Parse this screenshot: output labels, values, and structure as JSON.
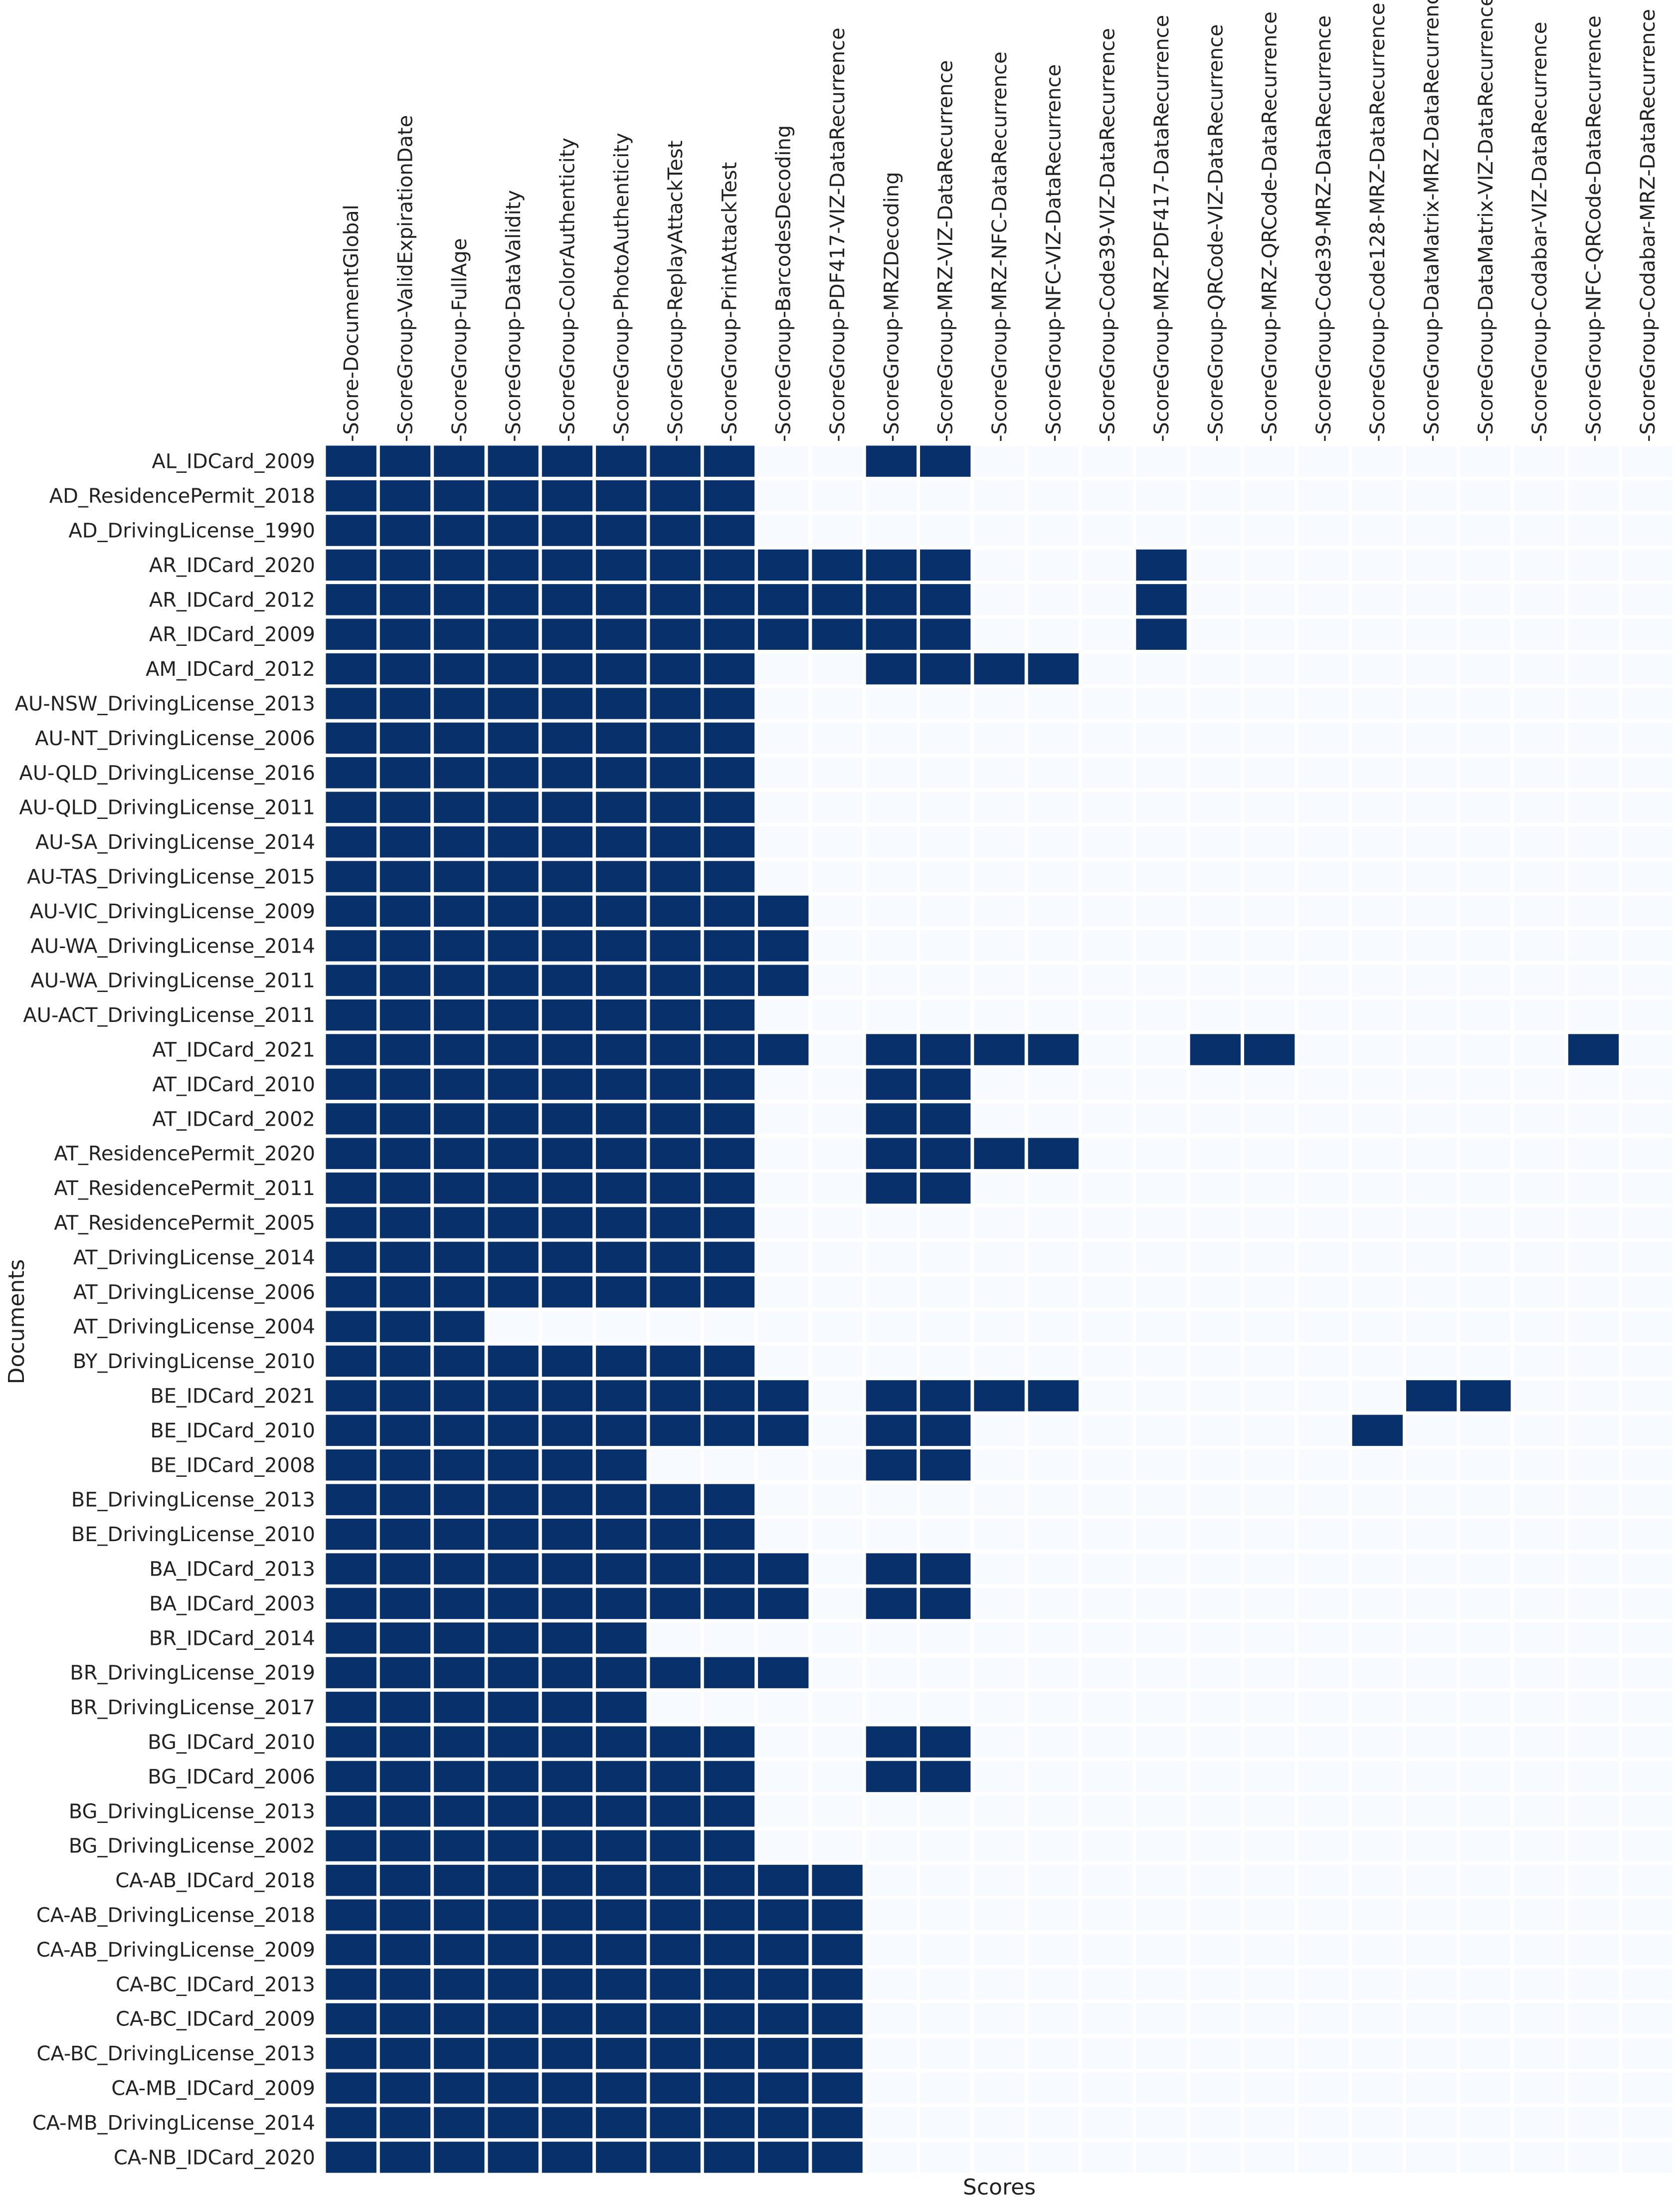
{
  "chart_data": {
    "type": "heatmap",
    "xlabel": "Scores",
    "ylabel": "Documents",
    "colors": {
      "filled": "#08306b",
      "empty": "#f7fbff",
      "gridline": "#ffffff",
      "text": "#222222"
    },
    "columns": [
      "-Score-DocumentGlobal",
      "-ScoreGroup-ValidExpirationDate",
      "-ScoreGroup-FullAge",
      "-ScoreGroup-DataValidity",
      "-ScoreGroup-ColorAuthenticity",
      "-ScoreGroup-PhotoAuthenticity",
      "-ScoreGroup-ReplayAttackTest",
      "-ScoreGroup-PrintAttackTest",
      "-ScoreGroup-BarcodesDecoding",
      "-ScoreGroup-PDF417-VIZ-DataRecurrence",
      "-ScoreGroup-MRZDecoding",
      "-ScoreGroup-MRZ-VIZ-DataRecurrence",
      "-ScoreGroup-MRZ-NFC-DataRecurrence",
      "-ScoreGroup-NFC-VIZ-DataRecurrence",
      "-ScoreGroup-Code39-VIZ-DataRecurrence",
      "-ScoreGroup-MRZ-PDF417-DataRecurrence",
      "-ScoreGroup-QRCode-VIZ-DataRecurrence",
      "-ScoreGroup-MRZ-QRCode-DataRecurrence",
      "-ScoreGroup-Code39-MRZ-DataRecurrence",
      "-ScoreGroup-Code128-MRZ-DataRecurrence",
      "-ScoreGroup-DataMatrix-MRZ-DataRecurrence",
      "-ScoreGroup-DataMatrix-VIZ-DataRecurrence",
      "-ScoreGroup-Codabar-VIZ-DataRecurrence",
      "-ScoreGroup-NFC-QRCode-DataRecurrence",
      "-ScoreGroup-Codabar-MRZ-DataRecurrence"
    ],
    "rows": [
      "AL_IDCard_2009",
      "AD_ResidencePermit_2018",
      "AD_DrivingLicense_1990",
      "AR_IDCard_2020",
      "AR_IDCard_2012",
      "AR_IDCard_2009",
      "AM_IDCard_2012",
      "AU-NSW_DrivingLicense_2013",
      "AU-NT_DrivingLicense_2006",
      "AU-QLD_DrivingLicense_2016",
      "AU-QLD_DrivingLicense_2011",
      "AU-SA_DrivingLicense_2014",
      "AU-TAS_DrivingLicense_2015",
      "AU-VIC_DrivingLicense_2009",
      "AU-WA_DrivingLicense_2014",
      "AU-WA_DrivingLicense_2011",
      "AU-ACT_DrivingLicense_2011",
      "AT_IDCard_2021",
      "AT_IDCard_2010",
      "AT_IDCard_2002",
      "AT_ResidencePermit_2020",
      "AT_ResidencePermit_2011",
      "AT_ResidencePermit_2005",
      "AT_DrivingLicense_2014",
      "AT_DrivingLicense_2006",
      "AT_DrivingLicense_2004",
      "BY_DrivingLicense_2010",
      "BE_IDCard_2021",
      "BE_IDCard_2010",
      "BE_IDCard_2008",
      "BE_DrivingLicense_2013",
      "BE_DrivingLicense_2010",
      "BA_IDCard_2013",
      "BA_IDCard_2003",
      "BR_IDCard_2014",
      "BR_DrivingLicense_2019",
      "BR_DrivingLicense_2017",
      "BG_IDCard_2010",
      "BG_IDCard_2006",
      "BG_DrivingLicense_2013",
      "BG_DrivingLicense_2002",
      "CA-AB_IDCard_2018",
      "CA-AB_DrivingLicense_2018",
      "CA-AB_DrivingLicense_2009",
      "CA-BC_IDCard_2013",
      "CA-BC_IDCard_2009",
      "CA-BC_DrivingLicense_2013",
      "CA-MB_IDCard_2009",
      "CA-MB_DrivingLicense_2014",
      "CA-NB_IDCard_2020"
    ],
    "values": [
      [
        1,
        1,
        1,
        1,
        1,
        1,
        1,
        1,
        0,
        0,
        1,
        1,
        0,
        0,
        0,
        0,
        0,
        0,
        0,
        0,
        0,
        0,
        0,
        0,
        0
      ],
      [
        1,
        1,
        1,
        1,
        1,
        1,
        1,
        1,
        0,
        0,
        0,
        0,
        0,
        0,
        0,
        0,
        0,
        0,
        0,
        0,
        0,
        0,
        0,
        0,
        0
      ],
      [
        1,
        1,
        1,
        1,
        1,
        1,
        1,
        1,
        0,
        0,
        0,
        0,
        0,
        0,
        0,
        0,
        0,
        0,
        0,
        0,
        0,
        0,
        0,
        0,
        0
      ],
      [
        1,
        1,
        1,
        1,
        1,
        1,
        1,
        1,
        1,
        1,
        1,
        1,
        0,
        0,
        0,
        1,
        0,
        0,
        0,
        0,
        0,
        0,
        0,
        0,
        0
      ],
      [
        1,
        1,
        1,
        1,
        1,
        1,
        1,
        1,
        1,
        1,
        1,
        1,
        0,
        0,
        0,
        1,
        0,
        0,
        0,
        0,
        0,
        0,
        0,
        0,
        0
      ],
      [
        1,
        1,
        1,
        1,
        1,
        1,
        1,
        1,
        1,
        1,
        1,
        1,
        0,
        0,
        0,
        1,
        0,
        0,
        0,
        0,
        0,
        0,
        0,
        0,
        0
      ],
      [
        1,
        1,
        1,
        1,
        1,
        1,
        1,
        1,
        0,
        0,
        1,
        1,
        1,
        1,
        0,
        0,
        0,
        0,
        0,
        0,
        0,
        0,
        0,
        0,
        0
      ],
      [
        1,
        1,
        1,
        1,
        1,
        1,
        1,
        1,
        0,
        0,
        0,
        0,
        0,
        0,
        0,
        0,
        0,
        0,
        0,
        0,
        0,
        0,
        0,
        0,
        0
      ],
      [
        1,
        1,
        1,
        1,
        1,
        1,
        1,
        1,
        0,
        0,
        0,
        0,
        0,
        0,
        0,
        0,
        0,
        0,
        0,
        0,
        0,
        0,
        0,
        0,
        0
      ],
      [
        1,
        1,
        1,
        1,
        1,
        1,
        1,
        1,
        0,
        0,
        0,
        0,
        0,
        0,
        0,
        0,
        0,
        0,
        0,
        0,
        0,
        0,
        0,
        0,
        0
      ],
      [
        1,
        1,
        1,
        1,
        1,
        1,
        1,
        1,
        0,
        0,
        0,
        0,
        0,
        0,
        0,
        0,
        0,
        0,
        0,
        0,
        0,
        0,
        0,
        0,
        0
      ],
      [
        1,
        1,
        1,
        1,
        1,
        1,
        1,
        1,
        0,
        0,
        0,
        0,
        0,
        0,
        0,
        0,
        0,
        0,
        0,
        0,
        0,
        0,
        0,
        0,
        0
      ],
      [
        1,
        1,
        1,
        1,
        1,
        1,
        1,
        1,
        0,
        0,
        0,
        0,
        0,
        0,
        0,
        0,
        0,
        0,
        0,
        0,
        0,
        0,
        0,
        0,
        0
      ],
      [
        1,
        1,
        1,
        1,
        1,
        1,
        1,
        1,
        1,
        0,
        0,
        0,
        0,
        0,
        0,
        0,
        0,
        0,
        0,
        0,
        0,
        0,
        0,
        0,
        0
      ],
      [
        1,
        1,
        1,
        1,
        1,
        1,
        1,
        1,
        1,
        0,
        0,
        0,
        0,
        0,
        0,
        0,
        0,
        0,
        0,
        0,
        0,
        0,
        0,
        0,
        0
      ],
      [
        1,
        1,
        1,
        1,
        1,
        1,
        1,
        1,
        1,
        0,
        0,
        0,
        0,
        0,
        0,
        0,
        0,
        0,
        0,
        0,
        0,
        0,
        0,
        0,
        0
      ],
      [
        1,
        1,
        1,
        1,
        1,
        1,
        1,
        1,
        0,
        0,
        0,
        0,
        0,
        0,
        0,
        0,
        0,
        0,
        0,
        0,
        0,
        0,
        0,
        0,
        0
      ],
      [
        1,
        1,
        1,
        1,
        1,
        1,
        1,
        1,
        1,
        0,
        1,
        1,
        1,
        1,
        0,
        0,
        1,
        1,
        0,
        0,
        0,
        0,
        0,
        1,
        0
      ],
      [
        1,
        1,
        1,
        1,
        1,
        1,
        1,
        1,
        0,
        0,
        1,
        1,
        0,
        0,
        0,
        0,
        0,
        0,
        0,
        0,
        0,
        0,
        0,
        0,
        0
      ],
      [
        1,
        1,
        1,
        1,
        1,
        1,
        1,
        1,
        0,
        0,
        1,
        1,
        0,
        0,
        0,
        0,
        0,
        0,
        0,
        0,
        0,
        0,
        0,
        0,
        0
      ],
      [
        1,
        1,
        1,
        1,
        1,
        1,
        1,
        1,
        0,
        0,
        1,
        1,
        1,
        1,
        0,
        0,
        0,
        0,
        0,
        0,
        0,
        0,
        0,
        0,
        0
      ],
      [
        1,
        1,
        1,
        1,
        1,
        1,
        1,
        1,
        0,
        0,
        1,
        1,
        0,
        0,
        0,
        0,
        0,
        0,
        0,
        0,
        0,
        0,
        0,
        0,
        0
      ],
      [
        1,
        1,
        1,
        1,
        1,
        1,
        1,
        1,
        0,
        0,
        0,
        0,
        0,
        0,
        0,
        0,
        0,
        0,
        0,
        0,
        0,
        0,
        0,
        0,
        0
      ],
      [
        1,
        1,
        1,
        1,
        1,
        1,
        1,
        1,
        0,
        0,
        0,
        0,
        0,
        0,
        0,
        0,
        0,
        0,
        0,
        0,
        0,
        0,
        0,
        0,
        0
      ],
      [
        1,
        1,
        1,
        1,
        1,
        1,
        1,
        1,
        0,
        0,
        0,
        0,
        0,
        0,
        0,
        0,
        0,
        0,
        0,
        0,
        0,
        0,
        0,
        0,
        0
      ],
      [
        1,
        1,
        1,
        0,
        0,
        0,
        0,
        0,
        0,
        0,
        0,
        0,
        0,
        0,
        0,
        0,
        0,
        0,
        0,
        0,
        0,
        0,
        0,
        0,
        0
      ],
      [
        1,
        1,
        1,
        1,
        1,
        1,
        1,
        1,
        0,
        0,
        0,
        0,
        0,
        0,
        0,
        0,
        0,
        0,
        0,
        0,
        0,
        0,
        0,
        0,
        0
      ],
      [
        1,
        1,
        1,
        1,
        1,
        1,
        1,
        1,
        1,
        0,
        1,
        1,
        1,
        1,
        0,
        0,
        0,
        0,
        0,
        0,
        1,
        1,
        0,
        0,
        0
      ],
      [
        1,
        1,
        1,
        1,
        1,
        1,
        1,
        1,
        1,
        0,
        1,
        1,
        0,
        0,
        0,
        0,
        0,
        0,
        0,
        1,
        0,
        0,
        0,
        0,
        0
      ],
      [
        1,
        1,
        1,
        1,
        1,
        1,
        0,
        0,
        0,
        0,
        1,
        1,
        0,
        0,
        0,
        0,
        0,
        0,
        0,
        0,
        0,
        0,
        0,
        0,
        0
      ],
      [
        1,
        1,
        1,
        1,
        1,
        1,
        1,
        1,
        0,
        0,
        0,
        0,
        0,
        0,
        0,
        0,
        0,
        0,
        0,
        0,
        0,
        0,
        0,
        0,
        0
      ],
      [
        1,
        1,
        1,
        1,
        1,
        1,
        1,
        1,
        0,
        0,
        0,
        0,
        0,
        0,
        0,
        0,
        0,
        0,
        0,
        0,
        0,
        0,
        0,
        0,
        0
      ],
      [
        1,
        1,
        1,
        1,
        1,
        1,
        1,
        1,
        1,
        0,
        1,
        1,
        0,
        0,
        0,
        0,
        0,
        0,
        0,
        0,
        0,
        0,
        0,
        0,
        0
      ],
      [
        1,
        1,
        1,
        1,
        1,
        1,
        1,
        1,
        1,
        0,
        1,
        1,
        0,
        0,
        0,
        0,
        0,
        0,
        0,
        0,
        0,
        0,
        0,
        0,
        0
      ],
      [
        1,
        1,
        1,
        1,
        1,
        1,
        0,
        0,
        0,
        0,
        0,
        0,
        0,
        0,
        0,
        0,
        0,
        0,
        0,
        0,
        0,
        0,
        0,
        0,
        0
      ],
      [
        1,
        1,
        1,
        1,
        1,
        1,
        1,
        1,
        1,
        0,
        0,
        0,
        0,
        0,
        0,
        0,
        0,
        0,
        0,
        0,
        0,
        0,
        0,
        0,
        0
      ],
      [
        1,
        1,
        1,
        1,
        1,
        1,
        0,
        0,
        0,
        0,
        0,
        0,
        0,
        0,
        0,
        0,
        0,
        0,
        0,
        0,
        0,
        0,
        0,
        0,
        0
      ],
      [
        1,
        1,
        1,
        1,
        1,
        1,
        1,
        1,
        0,
        0,
        1,
        1,
        0,
        0,
        0,
        0,
        0,
        0,
        0,
        0,
        0,
        0,
        0,
        0,
        0
      ],
      [
        1,
        1,
        1,
        1,
        1,
        1,
        1,
        1,
        0,
        0,
        1,
        1,
        0,
        0,
        0,
        0,
        0,
        0,
        0,
        0,
        0,
        0,
        0,
        0,
        0
      ],
      [
        1,
        1,
        1,
        1,
        1,
        1,
        1,
        1,
        0,
        0,
        0,
        0,
        0,
        0,
        0,
        0,
        0,
        0,
        0,
        0,
        0,
        0,
        0,
        0,
        0
      ],
      [
        1,
        1,
        1,
        1,
        1,
        1,
        1,
        1,
        0,
        0,
        0,
        0,
        0,
        0,
        0,
        0,
        0,
        0,
        0,
        0,
        0,
        0,
        0,
        0,
        0
      ],
      [
        1,
        1,
        1,
        1,
        1,
        1,
        1,
        1,
        1,
        1,
        0,
        0,
        0,
        0,
        0,
        0,
        0,
        0,
        0,
        0,
        0,
        0,
        0,
        0,
        0
      ],
      [
        1,
        1,
        1,
        1,
        1,
        1,
        1,
        1,
        1,
        1,
        0,
        0,
        0,
        0,
        0,
        0,
        0,
        0,
        0,
        0,
        0,
        0,
        0,
        0,
        0
      ],
      [
        1,
        1,
        1,
        1,
        1,
        1,
        1,
        1,
        1,
        1,
        0,
        0,
        0,
        0,
        0,
        0,
        0,
        0,
        0,
        0,
        0,
        0,
        0,
        0,
        0
      ],
      [
        1,
        1,
        1,
        1,
        1,
        1,
        1,
        1,
        1,
        1,
        0,
        0,
        0,
        0,
        0,
        0,
        0,
        0,
        0,
        0,
        0,
        0,
        0,
        0,
        0
      ],
      [
        1,
        1,
        1,
        1,
        1,
        1,
        1,
        1,
        1,
        1,
        0,
        0,
        0,
        0,
        0,
        0,
        0,
        0,
        0,
        0,
        0,
        0,
        0,
        0,
        0
      ],
      [
        1,
        1,
        1,
        1,
        1,
        1,
        1,
        1,
        1,
        1,
        0,
        0,
        0,
        0,
        0,
        0,
        0,
        0,
        0,
        0,
        0,
        0,
        0,
        0,
        0
      ],
      [
        1,
        1,
        1,
        1,
        1,
        1,
        1,
        1,
        1,
        1,
        0,
        0,
        0,
        0,
        0,
        0,
        0,
        0,
        0,
        0,
        0,
        0,
        0,
        0,
        0
      ],
      [
        1,
        1,
        1,
        1,
        1,
        1,
        1,
        1,
        1,
        1,
        0,
        0,
        0,
        0,
        0,
        0,
        0,
        0,
        0,
        0,
        0,
        0,
        0,
        0,
        0
      ],
      [
        1,
        1,
        1,
        1,
        1,
        1,
        1,
        1,
        1,
        1,
        0,
        0,
        0,
        0,
        0,
        0,
        0,
        0,
        0,
        0,
        0,
        0,
        0,
        0,
        0
      ]
    ],
    "legend": "none"
  }
}
